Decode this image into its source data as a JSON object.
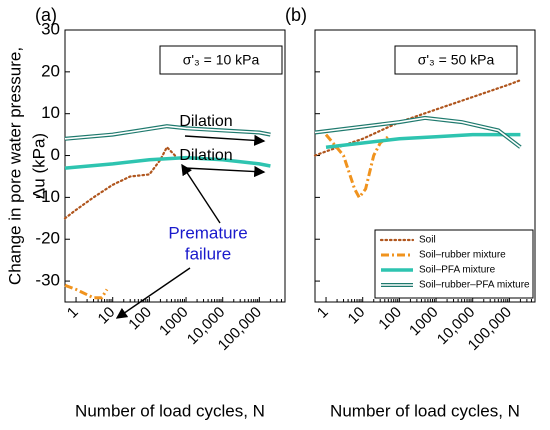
{
  "chart_data": [
    {
      "type": "line",
      "panel": "(a)",
      "annotation": "σ'₃ = 10 kPa",
      "ylabel": [
        "Change in pore water pressure,",
        "Δu (kPa)"
      ],
      "xlabel": "Number of load cycles, N",
      "notes": [
        "Dilation",
        "Dilation",
        "Premature",
        "failure"
      ],
      "xlog": true,
      "xlim": [
        0.5,
        500000
      ],
      "xticks": [
        1,
        10,
        100,
        1000,
        {
          "value": 10000,
          "label": "10,000"
        },
        {
          "value": 100000,
          "label": "100,000"
        }
      ],
      "ylim": [
        -35,
        30
      ],
      "yticks": [
        -30,
        -20,
        -10,
        0,
        10,
        20,
        30
      ],
      "series": [
        {
          "color": "#b0561e",
          "style": "dotted",
          "x": [
            0.5,
            1,
            3,
            10,
            30,
            100,
            200,
            300,
            500
          ],
          "values": [
            -15,
            -13,
            -10,
            -7,
            -5,
            -4.5,
            -1,
            2,
            0
          ]
        },
        {
          "color": "#f0931e",
          "style": "dashdot",
          "x": [
            0.5,
            1,
            3,
            5,
            7
          ],
          "values": [
            -31,
            -32,
            -34,
            -34,
            -32
          ]
        },
        {
          "color": "#2ec4b0",
          "style": "thick",
          "x": [
            0.5,
            10,
            100,
            1000,
            10000,
            100000,
            200000
          ],
          "values": [
            -3,
            -2,
            -1,
            -0.5,
            -1,
            -2,
            -2.5
          ]
        },
        {
          "color": "#1f7a6e",
          "style": "double",
          "x": [
            0.5,
            10,
            300,
            1000,
            10000,
            100000,
            200000
          ],
          "values": [
            4,
            5,
            7,
            6.5,
            6,
            5.5,
            5
          ]
        }
      ]
    },
    {
      "type": "line",
      "panel": "(b)",
      "annotation": "σ'₃ = 50 kPa",
      "xlabel": "Number of load cycles, N",
      "xlog": true,
      "xlim": [
        0.5,
        500000
      ],
      "xticks": [
        1,
        10,
        100,
        1000,
        {
          "value": 10000,
          "label": "10,000"
        },
        {
          "value": 100000,
          "label": "100,000"
        }
      ],
      "ylim": [
        -35,
        30
      ],
      "series": [
        {
          "name": "Soil",
          "color": "#b0561e",
          "style": "dotted",
          "x": [
            0.5,
            1,
            10,
            100,
            1000,
            10000,
            100000,
            200000
          ],
          "values": [
            0,
            1,
            4,
            8,
            11,
            14,
            17,
            18
          ]
        },
        {
          "name": "Soil–rubber mixture",
          "color": "#f0931e",
          "style": "dashdot",
          "x": [
            1,
            3,
            6,
            8,
            12,
            20,
            30,
            50
          ],
          "values": [
            5,
            0,
            -8,
            -10,
            -8,
            0,
            3,
            4.5
          ]
        },
        {
          "name": "Soil–PFA mixture",
          "color": "#2ec4b0",
          "style": "thick",
          "x": [
            1,
            10,
            100,
            1000,
            10000,
            200000
          ],
          "values": [
            2,
            3,
            4,
            4.5,
            5,
            5
          ]
        },
        {
          "name": "Soil–rubber–PFA mixture",
          "color": "#1f7a6e",
          "style": "double",
          "x": [
            0.5,
            100,
            500,
            5000,
            50000,
            200000
          ],
          "values": [
            5.5,
            8,
            9,
            8,
            6,
            2
          ]
        }
      ]
    }
  ]
}
